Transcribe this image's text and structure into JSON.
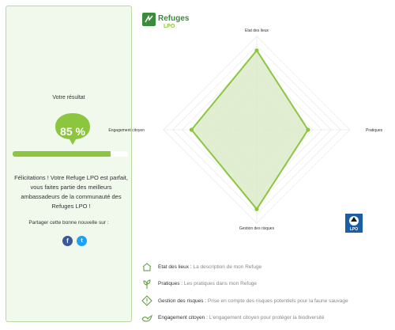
{
  "result": {
    "title": "Votre résultat",
    "score_text": "85 %",
    "score_fraction": 0.85,
    "message": "Félicitations ! Votre Refuge LPO est parfait, vous faites partie des meilleurs ambassadeurs de la communauté des Refuges LPO !",
    "share_label": "Partager cette bonne nouvelle sur :",
    "facebook_icon": "f",
    "twitter_icon": "t"
  },
  "logo": {
    "refuges": "Refuges",
    "lpo": "LPO",
    "badge": "LPO"
  },
  "colors": {
    "accent": "#8cc63f",
    "fill": "#dcebc9",
    "panel": "#f1f8ec",
    "facebook": "#3b5998",
    "twitter": "#1da1f2"
  },
  "chart_data": {
    "type": "radar",
    "axes": [
      "Etat des lieux",
      "Pratiques",
      "Gestion des risques",
      "Engagement citoyen"
    ],
    "values": [
      0.85,
      0.55,
      0.85,
      0.7
    ],
    "range": [
      0,
      1
    ],
    "grid_levels": 10
  },
  "legend": [
    {
      "icon": "house-icon",
      "title": "Etat des lieux",
      "desc": "La description de mon Refuge"
    },
    {
      "icon": "plant-icon",
      "title": "Pratiques",
      "desc": "Les pratiques dans mon Refuge"
    },
    {
      "icon": "hazard-icon",
      "title": "Gestion des risques",
      "desc": "Prise en compte des risques potentiels pour la faune sauvage"
    },
    {
      "icon": "bird-icon",
      "title": "Engagement citoyen",
      "desc": "L'engagement citoyen pour protéger la biodiversité"
    }
  ]
}
